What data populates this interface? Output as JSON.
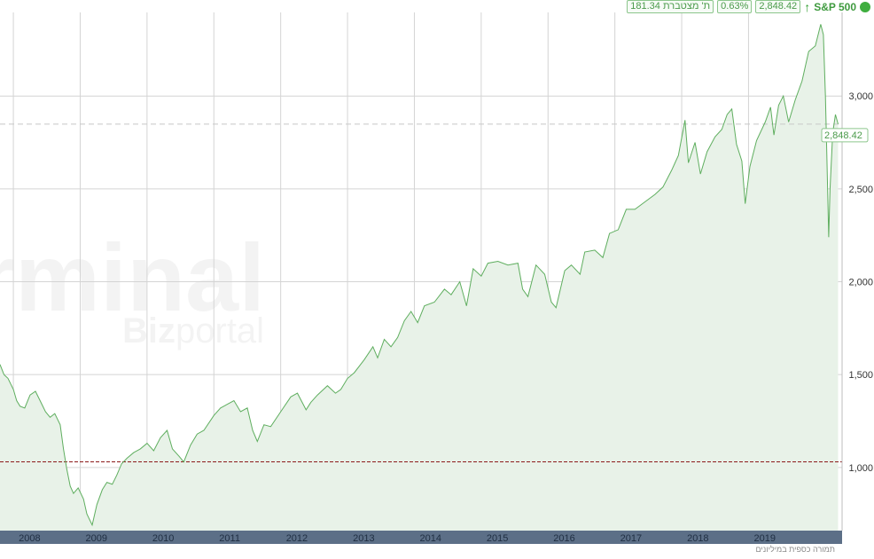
{
  "header": {
    "index_name": "S&P 500",
    "trend_icon": "arrow-up-icon",
    "last_price": "2,848.42",
    "change_pct": "0.63%",
    "cum_value": "181.34",
    "cum_label": "ת' מצטברת",
    "status_color": "#3fae3f"
  },
  "watermark": {
    "line1": "rminal",
    "line2_bold": "Biz",
    "line2_light": "portal"
  },
  "footnote": "תמורה כספית במיליונים",
  "colors": {
    "line": "#5fae5f",
    "fill": "#e8f2e8",
    "axis_bar": "#5c6f87",
    "reference_line": "#8b1a1a"
  },
  "chart_data": {
    "type": "area",
    "title": "",
    "xlabel": "",
    "ylabel": "",
    "x_ticks": [
      "2008",
      "2009",
      "2010",
      "2011",
      "2012",
      "2013",
      "2014",
      "2015",
      "2016",
      "2017",
      "2018",
      "2019"
    ],
    "y_ticks": [
      "1,000",
      "1,500",
      "2,000",
      "2,500",
      "3,000"
    ],
    "y_tick_values": [
      1000,
      1500,
      2000,
      2500,
      3000
    ],
    "xlim": [
      2007.8,
      2020.4
    ],
    "ylim": [
      660,
      3450
    ],
    "grid": true,
    "last_value_label": "2,848.42",
    "last_value": 2848.42,
    "reference_line": 1030,
    "series": [
      {
        "values": [
          [
            2007.8,
            1555
          ],
          [
            2007.86,
            1500
          ],
          [
            2007.92,
            1480
          ],
          [
            2008.0,
            1420
          ],
          [
            2008.05,
            1360
          ],
          [
            2008.1,
            1330
          ],
          [
            2008.17,
            1320
          ],
          [
            2008.25,
            1390
          ],
          [
            2008.33,
            1410
          ],
          [
            2008.4,
            1360
          ],
          [
            2008.48,
            1300
          ],
          [
            2008.55,
            1270
          ],
          [
            2008.62,
            1290
          ],
          [
            2008.7,
            1230
          ],
          [
            2008.75,
            1100
          ],
          [
            2008.8,
            990
          ],
          [
            2008.85,
            900
          ],
          [
            2008.9,
            860
          ],
          [
            2008.97,
            890
          ],
          [
            2009.05,
            830
          ],
          [
            2009.1,
            750
          ],
          [
            2009.18,
            690
          ],
          [
            2009.25,
            800
          ],
          [
            2009.33,
            880
          ],
          [
            2009.4,
            920
          ],
          [
            2009.48,
            910
          ],
          [
            2009.55,
            960
          ],
          [
            2009.62,
            1020
          ],
          [
            2009.7,
            1050
          ],
          [
            2009.8,
            1080
          ],
          [
            2009.9,
            1100
          ],
          [
            2010.0,
            1130
          ],
          [
            2010.1,
            1090
          ],
          [
            2010.2,
            1160
          ],
          [
            2010.3,
            1200
          ],
          [
            2010.38,
            1100
          ],
          [
            2010.48,
            1060
          ],
          [
            2010.55,
            1030
          ],
          [
            2010.65,
            1120
          ],
          [
            2010.75,
            1180
          ],
          [
            2010.85,
            1200
          ],
          [
            2011.0,
            1280
          ],
          [
            2011.1,
            1320
          ],
          [
            2011.2,
            1340
          ],
          [
            2011.3,
            1360
          ],
          [
            2011.4,
            1300
          ],
          [
            2011.5,
            1320
          ],
          [
            2011.58,
            1200
          ],
          [
            2011.65,
            1140
          ],
          [
            2011.75,
            1230
          ],
          [
            2011.85,
            1220
          ],
          [
            2012.0,
            1300
          ],
          [
            2012.15,
            1380
          ],
          [
            2012.25,
            1400
          ],
          [
            2012.38,
            1310
          ],
          [
            2012.45,
            1350
          ],
          [
            2012.55,
            1390
          ],
          [
            2012.7,
            1440
          ],
          [
            2012.82,
            1400
          ],
          [
            2012.9,
            1420
          ],
          [
            2013.0,
            1480
          ],
          [
            2013.1,
            1510
          ],
          [
            2013.25,
            1580
          ],
          [
            2013.38,
            1650
          ],
          [
            2013.45,
            1590
          ],
          [
            2013.55,
            1690
          ],
          [
            2013.65,
            1650
          ],
          [
            2013.75,
            1700
          ],
          [
            2013.85,
            1790
          ],
          [
            2013.95,
            1840
          ],
          [
            2014.05,
            1780
          ],
          [
            2014.15,
            1870
          ],
          [
            2014.3,
            1890
          ],
          [
            2014.45,
            1960
          ],
          [
            2014.55,
            1930
          ],
          [
            2014.68,
            2000
          ],
          [
            2014.78,
            1870
          ],
          [
            2014.88,
            2070
          ],
          [
            2015.0,
            2030
          ],
          [
            2015.1,
            2100
          ],
          [
            2015.25,
            2110
          ],
          [
            2015.4,
            2090
          ],
          [
            2015.55,
            2100
          ],
          [
            2015.62,
            1960
          ],
          [
            2015.7,
            1920
          ],
          [
            2015.82,
            2090
          ],
          [
            2015.95,
            2040
          ],
          [
            2016.05,
            1890
          ],
          [
            2016.12,
            1860
          ],
          [
            2016.25,
            2060
          ],
          [
            2016.35,
            2090
          ],
          [
            2016.48,
            2040
          ],
          [
            2016.55,
            2160
          ],
          [
            2016.7,
            2170
          ],
          [
            2016.82,
            2130
          ],
          [
            2016.92,
            2260
          ],
          [
            2017.05,
            2280
          ],
          [
            2017.17,
            2390
          ],
          [
            2017.3,
            2390
          ],
          [
            2017.45,
            2430
          ],
          [
            2017.6,
            2470
          ],
          [
            2017.72,
            2510
          ],
          [
            2017.85,
            2600
          ],
          [
            2017.95,
            2680
          ],
          [
            2018.05,
            2870
          ],
          [
            2018.1,
            2640
          ],
          [
            2018.2,
            2750
          ],
          [
            2018.28,
            2580
          ],
          [
            2018.38,
            2700
          ],
          [
            2018.5,
            2780
          ],
          [
            2018.6,
            2820
          ],
          [
            2018.68,
            2900
          ],
          [
            2018.75,
            2930
          ],
          [
            2018.82,
            2740
          ],
          [
            2018.9,
            2650
          ],
          [
            2018.95,
            2420
          ],
          [
            2019.02,
            2620
          ],
          [
            2019.12,
            2760
          ],
          [
            2019.25,
            2860
          ],
          [
            2019.33,
            2940
          ],
          [
            2019.38,
            2790
          ],
          [
            2019.45,
            2950
          ],
          [
            2019.52,
            3000
          ],
          [
            2019.6,
            2860
          ],
          [
            2019.7,
            2980
          ],
          [
            2019.8,
            3080
          ],
          [
            2019.9,
            3240
          ],
          [
            2020.0,
            3270
          ],
          [
            2020.08,
            3386
          ],
          [
            2020.12,
            3330
          ],
          [
            2020.15,
            3000
          ],
          [
            2020.17,
            2700
          ],
          [
            2020.2,
            2240
          ],
          [
            2020.22,
            2500
          ],
          [
            2020.26,
            2800
          ],
          [
            2020.3,
            2900
          ],
          [
            2020.34,
            2848.42
          ]
        ]
      }
    ]
  }
}
